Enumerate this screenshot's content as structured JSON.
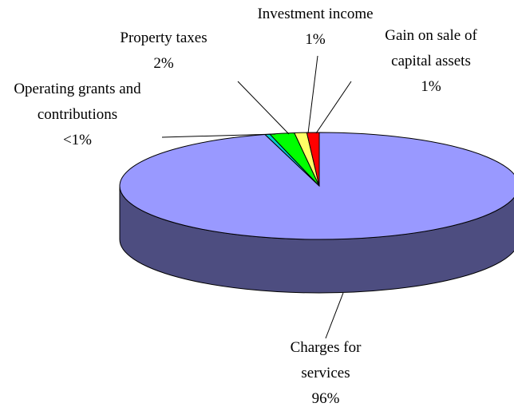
{
  "chart_data": {
    "type": "pie",
    "categories": [
      "Charges for services",
      "Operating grants and contributions",
      "Property taxes",
      "Investment income",
      "Gain on sale of capital assets"
    ],
    "values": [
      96,
      0.4,
      2,
      1,
      1
    ],
    "value_labels": [
      "96%",
      "<1%",
      "2%",
      "1%",
      "1%"
    ],
    "colors": [
      "#9999ff",
      "#00cccc",
      "#00ff00",
      "#ffff66",
      "#ff0000"
    ]
  }
}
